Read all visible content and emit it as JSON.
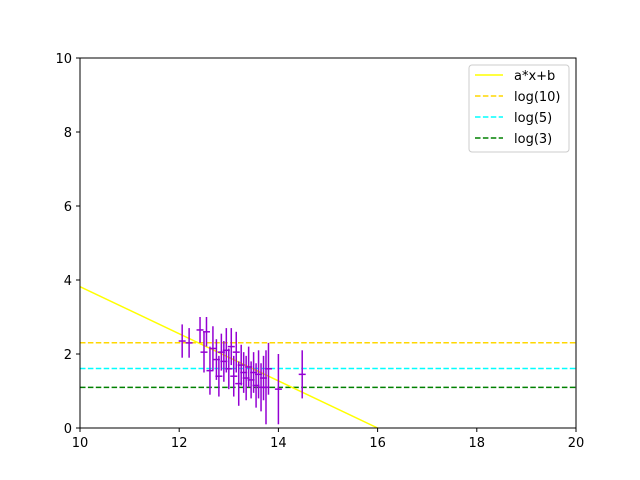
{
  "chart_data": {
    "type": "scatter",
    "title": "",
    "xlabel": "",
    "ylabel": "",
    "xlim": [
      10,
      20
    ],
    "ylim": [
      0,
      10
    ],
    "x_ticks": [
      "10",
      "12",
      "14",
      "16",
      "18",
      "20"
    ],
    "y_ticks": [
      "0",
      "2",
      "4",
      "6",
      "8",
      "10"
    ],
    "grid": false,
    "legend_position": "top-right",
    "fit_line": {
      "name": "a*x+b",
      "color": "#ffff00",
      "points": [
        [
          10,
          3.82
        ],
        [
          16,
          0.0
        ]
      ]
    },
    "reference_lines": [
      {
        "name": "log(10)",
        "y": 2.303,
        "color": "#ffd700",
        "style": "dashed"
      },
      {
        "name": "log(5)",
        "y": 1.609,
        "color": "#00ffff",
        "style": "dashed"
      },
      {
        "name": "log(3)",
        "y": 1.099,
        "color": "#008000",
        "style": "dashed"
      }
    ],
    "errorbar_series": {
      "color": "#9400d3",
      "points": [
        {
          "x": 12.06,
          "y": 2.35,
          "yerr": 0.45
        },
        {
          "x": 12.2,
          "y": 2.3,
          "yerr": 0.4
        },
        {
          "x": 12.42,
          "y": 2.65,
          "yerr": 0.35
        },
        {
          "x": 12.5,
          "y": 2.05,
          "yerr": 0.55
        },
        {
          "x": 12.55,
          "y": 2.6,
          "yerr": 0.4
        },
        {
          "x": 12.62,
          "y": 1.55,
          "yerr": 0.65
        },
        {
          "x": 12.68,
          "y": 2.15,
          "yerr": 0.6
        },
        {
          "x": 12.75,
          "y": 1.85,
          "yerr": 0.55
        },
        {
          "x": 12.8,
          "y": 1.4,
          "yerr": 0.55
        },
        {
          "x": 12.85,
          "y": 2.05,
          "yerr": 0.5
        },
        {
          "x": 12.9,
          "y": 1.8,
          "yerr": 0.55
        },
        {
          "x": 12.95,
          "y": 2.1,
          "yerr": 0.6
        },
        {
          "x": 13.0,
          "y": 1.6,
          "yerr": 0.55
        },
        {
          "x": 13.05,
          "y": 2.2,
          "yerr": 0.5
        },
        {
          "x": 13.1,
          "y": 1.4,
          "yerr": 0.55
        },
        {
          "x": 13.15,
          "y": 2.05,
          "yerr": 0.55
        },
        {
          "x": 13.2,
          "y": 1.2,
          "yerr": 0.6
        },
        {
          "x": 13.25,
          "y": 1.7,
          "yerr": 0.55
        },
        {
          "x": 13.3,
          "y": 1.5,
          "yerr": 0.55
        },
        {
          "x": 13.35,
          "y": 1.35,
          "yerr": 0.6
        },
        {
          "x": 13.4,
          "y": 1.65,
          "yerr": 0.55
        },
        {
          "x": 13.45,
          "y": 1.3,
          "yerr": 0.5
        },
        {
          "x": 13.5,
          "y": 1.5,
          "yerr": 0.55
        },
        {
          "x": 13.55,
          "y": 1.15,
          "yerr": 0.6
        },
        {
          "x": 13.6,
          "y": 1.45,
          "yerr": 0.65
        },
        {
          "x": 13.65,
          "y": 1.1,
          "yerr": 0.65
        },
        {
          "x": 13.7,
          "y": 1.35,
          "yerr": 0.6
        },
        {
          "x": 13.75,
          "y": 1.1,
          "yerr": 1.0
        },
        {
          "x": 13.8,
          "y": 1.6,
          "yerr": 0.7
        },
        {
          "x": 14.0,
          "y": 1.05,
          "yerr": 0.95
        },
        {
          "x": 14.48,
          "y": 1.45,
          "yerr": 0.65
        }
      ]
    }
  }
}
